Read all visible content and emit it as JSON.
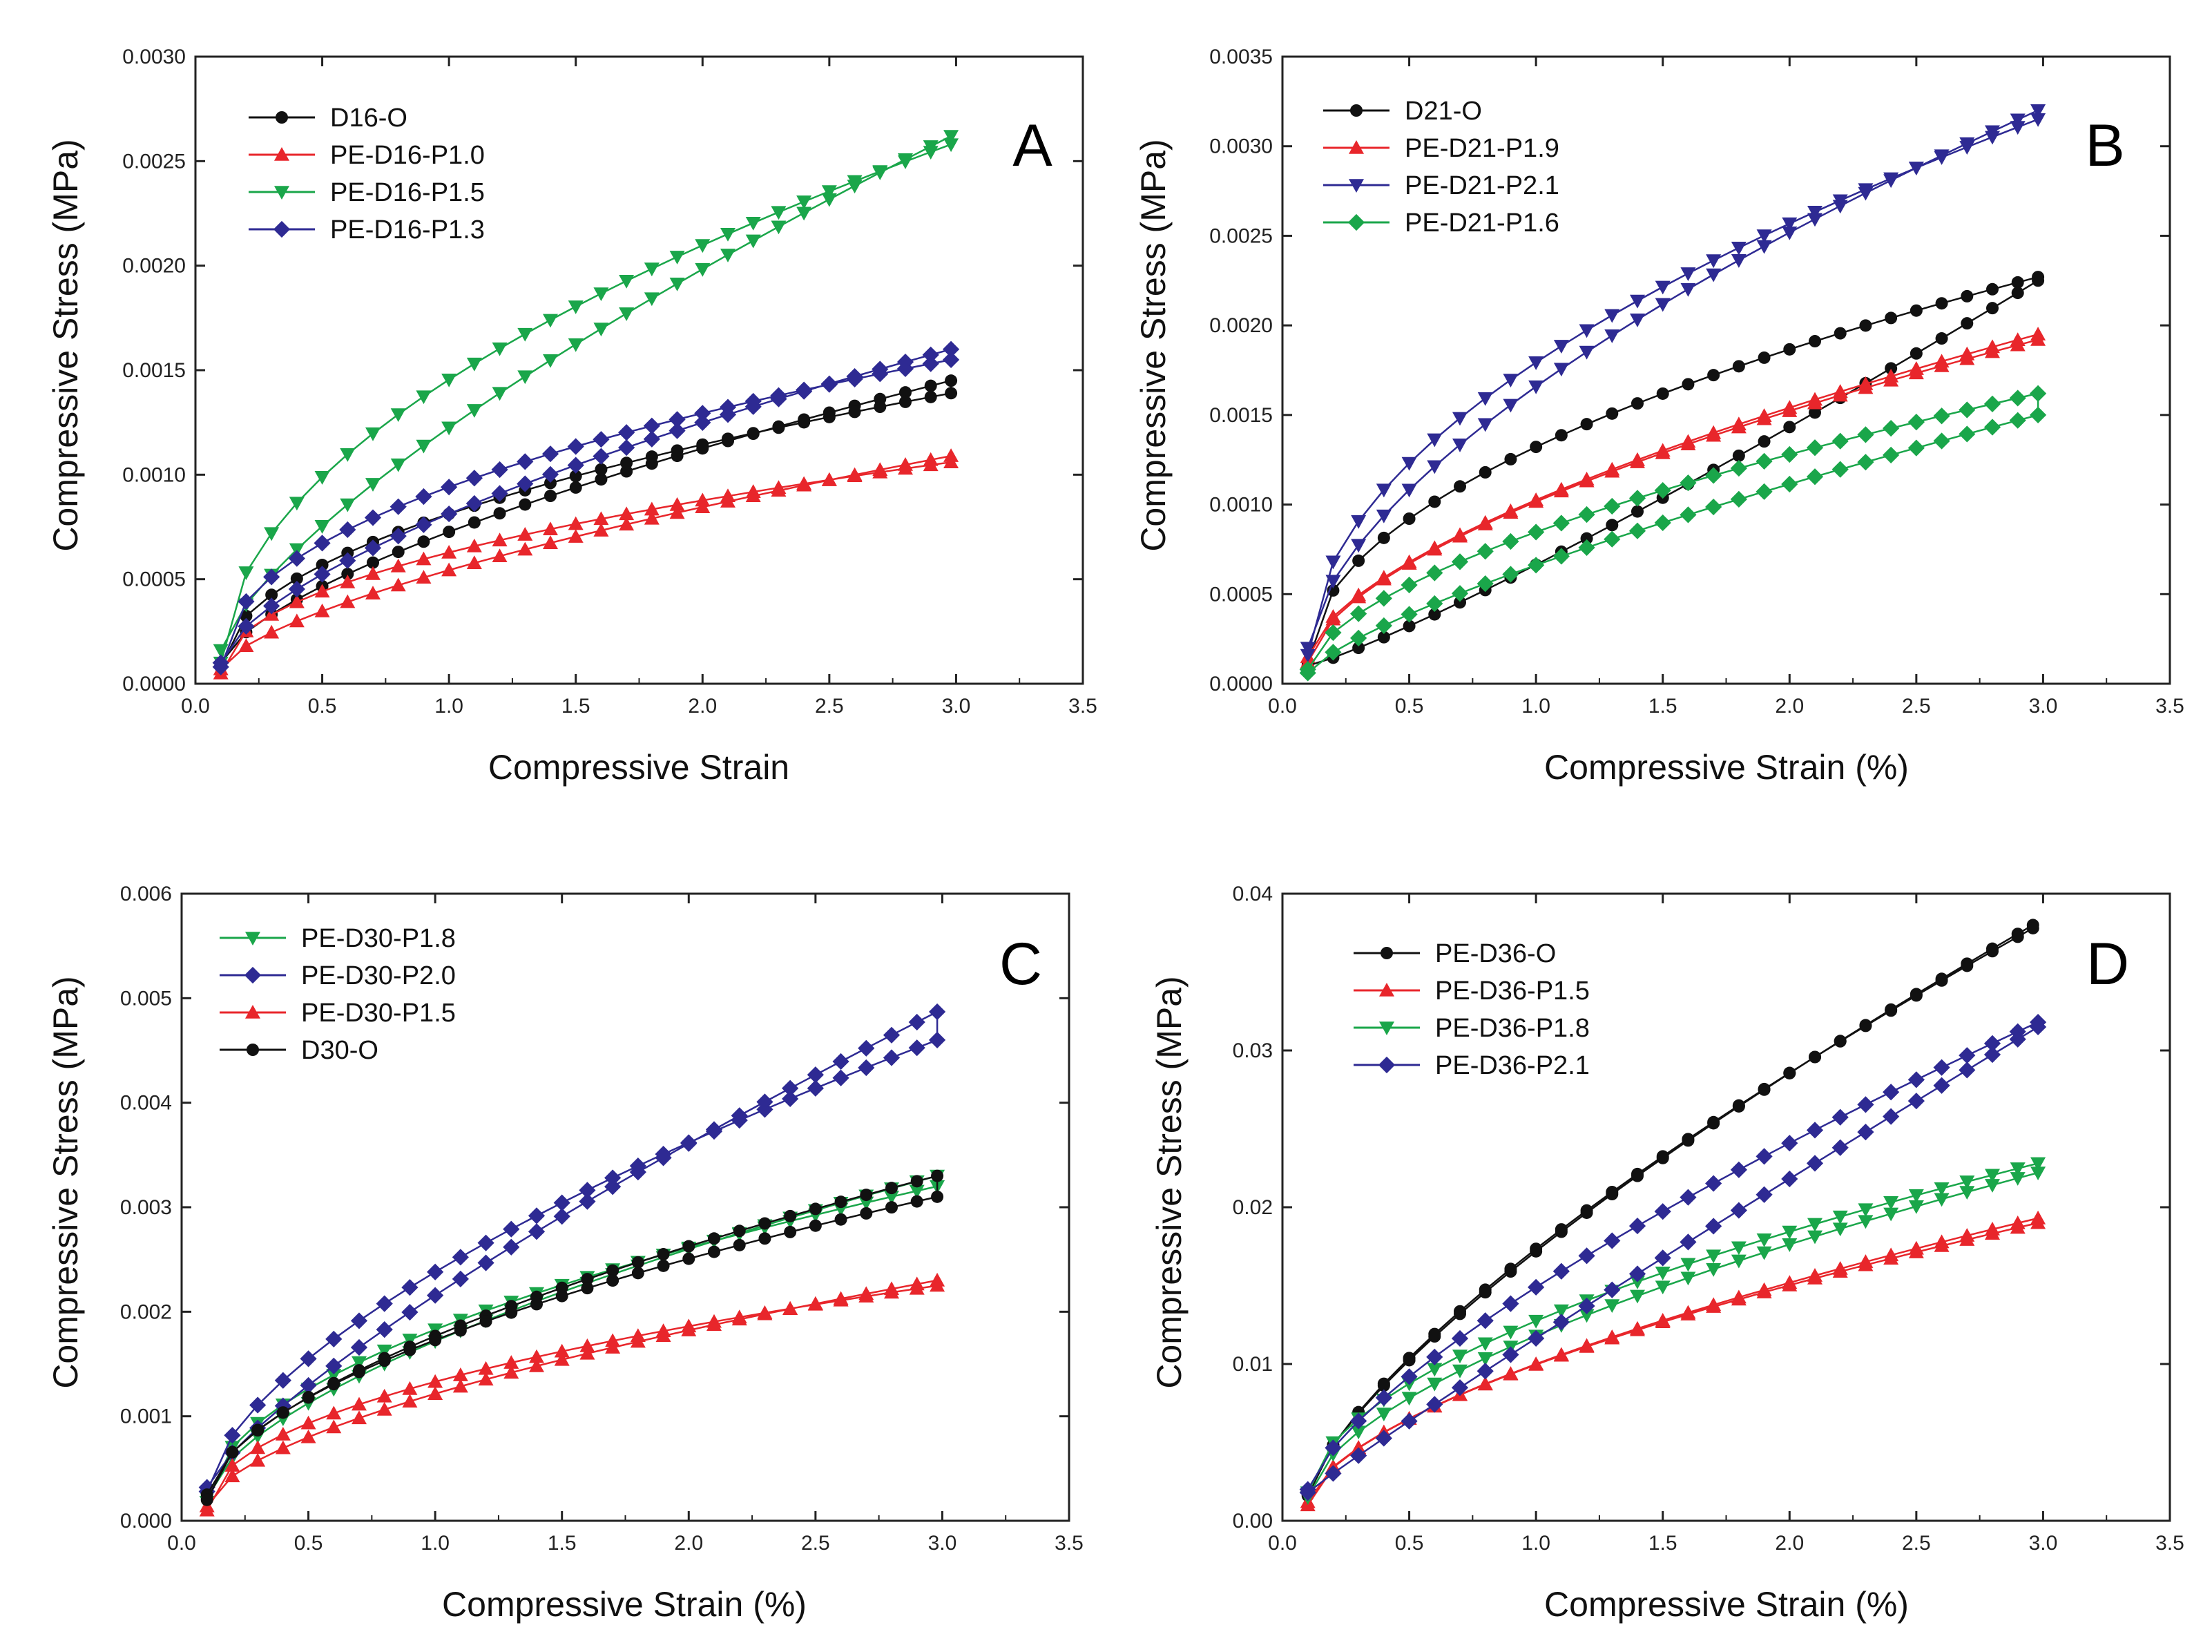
{
  "figure": {
    "colors": {
      "black": "#111111",
      "red": "#e8262b",
      "green": "#1aa64a",
      "navy": "#2e2a93"
    }
  },
  "chart_data": [
    {
      "type": "line",
      "panel": "A",
      "xlabel": "Compressive Strain",
      "ylabel": "Compressive Stress (MPa)",
      "xlim": [
        0,
        3.5
      ],
      "ylim": [
        0,
        0.003
      ],
      "x_ticks": [
        "0.0",
        "0.5",
        "1.0",
        "1.5",
        "2.0",
        "2.5",
        "3.0",
        "3.5"
      ],
      "y_ticks": [
        "0.0000",
        "0.0005",
        "0.0010",
        "0.0015",
        "0.0020",
        "0.0025",
        "0.0030"
      ],
      "legend": "top-left",
      "series": [
        {
          "name": "D16-O",
          "color": "#111111",
          "marker": "circle",
          "xmax": 2.98,
          "load": [
            0.0001,
            0.00145,
            0.66
          ],
          "unload": [
            8e-05,
            0.00139,
            0.5
          ]
        },
        {
          "name": "PE-D16-P1.0",
          "color": "#e8262b",
          "marker": "triangle-up",
          "xmax": 2.98,
          "load": [
            7e-05,
            0.00109,
            0.66
          ],
          "unload": [
            5e-05,
            0.00106,
            0.48
          ]
        },
        {
          "name": "PE-D16-P1.5",
          "color": "#1aa64a",
          "marker": "triangle-down",
          "xmax": 2.98,
          "load": [
            0.00016,
            0.00262,
            0.72
          ],
          "unload": [
            0.0001,
            0.00258,
            0.52
          ]
        },
        {
          "name": "PE-D16-P1.3",
          "color": "#2e2a93",
          "marker": "diamond",
          "xmax": 2.98,
          "load": [
            0.0001,
            0.0016,
            0.64
          ],
          "unload": [
            8e-05,
            0.00155,
            0.46
          ]
        }
      ]
    },
    {
      "type": "line",
      "panel": "B",
      "xlabel": "Compressive Strain (%)",
      "ylabel": "Compressive Stress (MPa)",
      "xlim": [
        0,
        3.5
      ],
      "ylim": [
        0,
        0.0035
      ],
      "x_ticks": [
        "0.0",
        "0.5",
        "1.0",
        "1.5",
        "2.0",
        "2.5",
        "3.0",
        "3.5"
      ],
      "y_ticks": [
        "0.0000",
        "0.0005",
        "0.0010",
        "0.0015",
        "0.0020",
        "0.0025",
        "0.0030",
        "0.0035"
      ],
      "legend": "top-left",
      "series": [
        {
          "name": "D21-O",
          "color": "#111111",
          "marker": "circle",
          "xmax": 2.98,
          "load": [
            0.00012,
            0.00227,
            0.5
          ],
          "unload": [
            0.0001,
            0.00225,
            1.15
          ]
        },
        {
          "name": "PE-D21-P1.9",
          "color": "#e8262b",
          "marker": "triangle-up",
          "xmax": 2.98,
          "load": [
            0.00015,
            0.00195,
            0.62
          ],
          "unload": [
            0.00012,
            0.00192,
            0.6
          ]
        },
        {
          "name": "PE-D21-P2.1",
          "color": "#2e2a93",
          "marker": "triangle-down",
          "xmax": 2.98,
          "load": [
            0.0002,
            0.0032,
            0.62
          ],
          "unload": [
            0.00016,
            0.00315,
            0.52
          ]
        },
        {
          "name": "PE-D21-P1.6",
          "color": "#1aa64a",
          "marker": "diamond",
          "xmax": 2.98,
          "load": [
            8e-05,
            0.00162,
            0.6
          ],
          "unload": [
            6e-05,
            0.0015,
            0.75
          ]
        }
      ]
    },
    {
      "type": "line",
      "panel": "C",
      "xlabel": "Compressive Strain (%)",
      "ylabel": "Compressive Stress (MPa)",
      "xlim": [
        0,
        3.5
      ],
      "ylim": [
        0,
        0.006
      ],
      "x_ticks": [
        "0.0",
        "0.5",
        "1.0",
        "1.5",
        "2.0",
        "2.5",
        "3.0",
        "3.5"
      ],
      "y_ticks": [
        "0.000",
        "0.001",
        "0.002",
        "0.003",
        "0.004",
        "0.005",
        "0.006"
      ],
      "legend": "top-left",
      "series": [
        {
          "name": "PE-D30-P1.8",
          "color": "#1aa64a",
          "marker": "triangle-down",
          "xmax": 2.98,
          "load": [
            0.00022,
            0.0033,
            0.62
          ],
          "unload": [
            0.00018,
            0.0032,
            0.52
          ]
        },
        {
          "name": "PE-D30-P2.0",
          "color": "#2e2a93",
          "marker": "diamond",
          "xmax": 2.98,
          "load": [
            0.00032,
            0.00487,
            0.78
          ],
          "unload": [
            0.00028,
            0.0046,
            0.62
          ]
        },
        {
          "name": "PE-D30-P1.5",
          "color": "#e8262b",
          "marker": "triangle-up",
          "xmax": 2.98,
          "load": [
            0.00014,
            0.0023,
            0.6
          ],
          "unload": [
            0.0001,
            0.00225,
            0.48
          ]
        },
        {
          "name": "D30-O",
          "color": "#111111",
          "marker": "circle",
          "xmax": 2.98,
          "load": [
            0.00025,
            0.0033,
            0.6
          ],
          "unload": [
            0.0002,
            0.0031,
            0.55
          ]
        }
      ]
    },
    {
      "type": "line",
      "panel": "D",
      "xlabel": "Compressive Strain (%)",
      "ylabel": "Compressive Stress (MPa)",
      "xlim": [
        0,
        3.5
      ],
      "ylim": [
        0,
        0.04
      ],
      "x_ticks": [
        "0.0",
        "0.5",
        "1.0",
        "1.5",
        "2.0",
        "2.5",
        "3.0",
        "3.5"
      ],
      "y_ticks": [
        "0.00",
        "0.01",
        "0.02",
        "0.03",
        "0.04"
      ],
      "legend": "top-left",
      "series": [
        {
          "name": "PE-D36-O",
          "color": "#111111",
          "marker": "circle",
          "xmax": 2.96,
          "load": [
            0.0018,
            0.038,
            0.74
          ],
          "unload": [
            0.0016,
            0.0378,
            0.72
          ]
        },
        {
          "name": "PE-D36-P1.5",
          "color": "#e8262b",
          "marker": "triangle-up",
          "xmax": 2.98,
          "load": [
            0.0012,
            0.0193,
            0.62
          ],
          "unload": [
            0.001,
            0.019,
            0.6
          ]
        },
        {
          "name": "PE-D36-P1.8",
          "color": "#1aa64a",
          "marker": "triangle-down",
          "xmax": 2.98,
          "load": [
            0.0018,
            0.0228,
            0.56
          ],
          "unload": [
            0.0015,
            0.0222,
            0.6
          ]
        },
        {
          "name": "PE-D36-P2.1",
          "color": "#2e2a93",
          "marker": "diamond",
          "xmax": 2.98,
          "load": [
            0.002,
            0.0318,
            0.72
          ],
          "unload": [
            0.0018,
            0.0315,
            0.95
          ]
        }
      ]
    }
  ]
}
